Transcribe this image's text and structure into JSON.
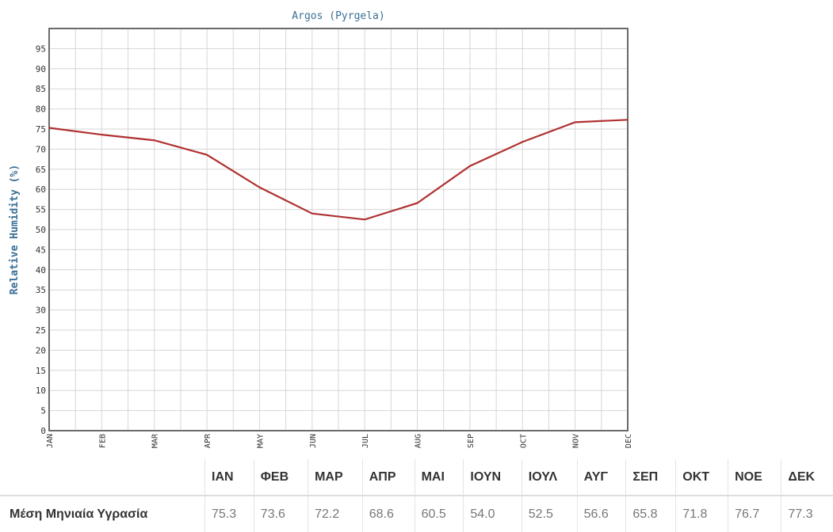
{
  "chart_data": {
    "type": "line",
    "title": "Argos (Pyrgela)",
    "xlabel": "",
    "ylabel": "Relative Humidity (%)",
    "categories": [
      "JAN",
      "FEB",
      "MAR",
      "APR",
      "MAY",
      "JUN",
      "JUL",
      "AUG",
      "SEP",
      "OCT",
      "NOV",
      "DEC"
    ],
    "series": [
      {
        "values": [
          75.3,
          73.6,
          72.2,
          68.6,
          60.5,
          54.0,
          52.5,
          56.6,
          65.8,
          71.8,
          76.7,
          77.3
        ]
      }
    ],
    "ylim": [
      0,
      100
    ],
    "yticks": [
      0,
      5,
      10,
      15,
      20,
      25,
      30,
      35,
      40,
      45,
      50,
      55,
      60,
      65,
      70,
      75,
      80,
      85,
      90,
      95
    ],
    "grid": true,
    "line_color": "#b03030"
  },
  "table": {
    "corner": "",
    "months": [
      "ΙΑΝ",
      "ΦΕΒ",
      "ΜΑΡ",
      "ΑΠΡ",
      "ΜΑΙ",
      "ΙΟΥΝ",
      "ΙΟΥΛ",
      "ΑΥΓ",
      "ΣΕΠ",
      "ΟΚΤ",
      "ΝΟΕ",
      "ΔΕΚ"
    ],
    "row_label": "Μέση Μηνιαία Υγρασία",
    "values": [
      "75.3",
      "73.6",
      "72.2",
      "68.6",
      "60.5",
      "54.0",
      "52.5",
      "56.6",
      "65.8",
      "71.8",
      "76.7",
      "77.3"
    ]
  }
}
